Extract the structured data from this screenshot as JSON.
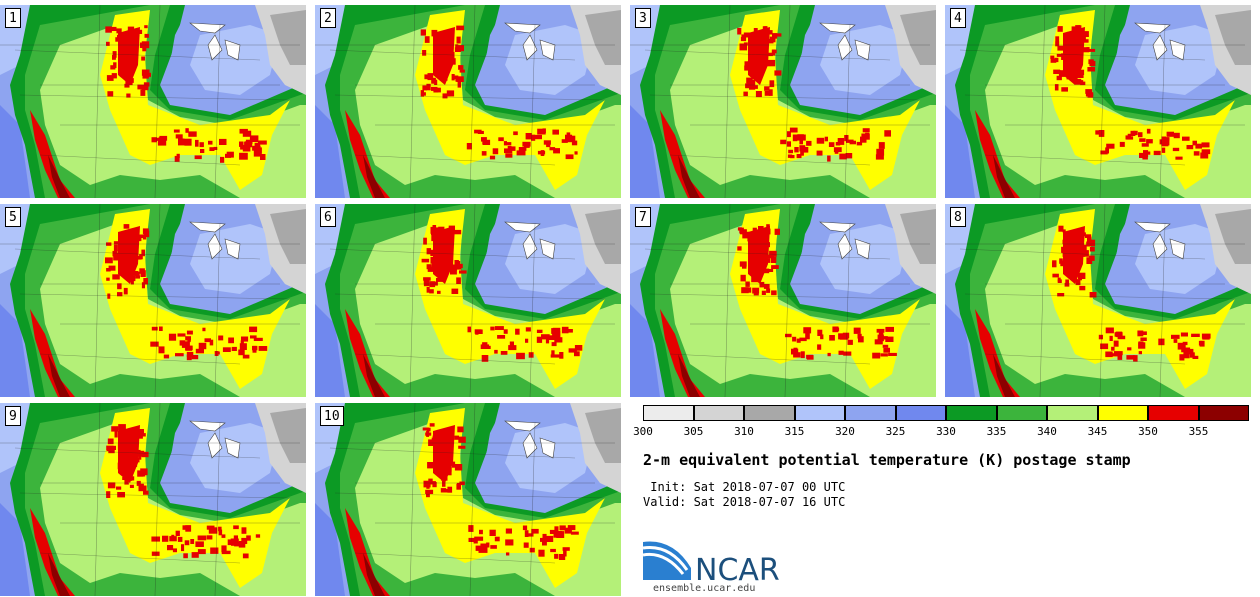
{
  "stamps": [
    "1",
    "2",
    "3",
    "4",
    "5",
    "6",
    "7",
    "8",
    "9",
    "10"
  ],
  "colorbar": {
    "colors": [
      "#ececec",
      "#d4d4d4",
      "#a8a8a8",
      "#b0c4fa",
      "#8ea4f0",
      "#7088ee",
      "#0c9a24",
      "#3cb43c",
      "#b4f078",
      "#ffff00",
      "#e60000",
      "#8c0000"
    ],
    "labels": [
      "300",
      "305",
      "310",
      "315",
      "320",
      "325",
      "330",
      "335",
      "340",
      "345",
      "350",
      "355"
    ]
  },
  "title": "2-m equivalent potential temperature (K) postage stamp",
  "init_line": " Init: Sat 2018-07-07 00 UTC",
  "valid_line": "Valid: Sat 2018-07-07 16 UTC",
  "logo": {
    "text": "NCAR",
    "url": "ensemble.ucar.edu"
  }
}
